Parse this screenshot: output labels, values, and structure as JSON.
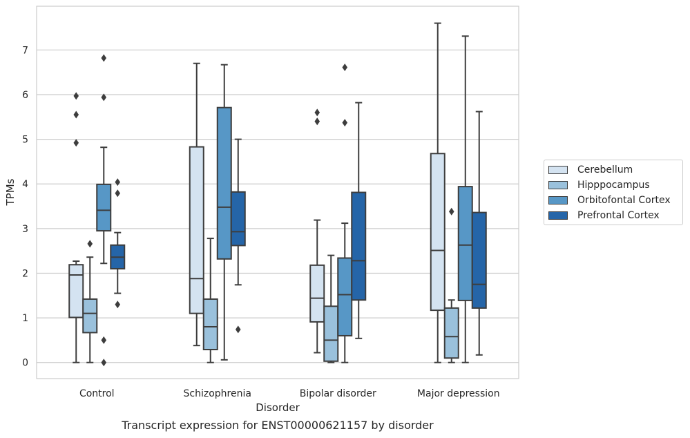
{
  "caption": "Transcript expression for ENST00000621157 by disorder",
  "chart_data": {
    "type": "box",
    "xlabel": "Disorder",
    "ylabel": "TPMs",
    "ylim": [
      -0.36,
      7.98
    ],
    "yticks": [
      0,
      1,
      2,
      3,
      4,
      5,
      6,
      7
    ],
    "grid": true,
    "legend_position": "right",
    "categories": [
      "Control",
      "Schizophrenia",
      "Bipolar disorder",
      "Major depression"
    ],
    "series": [
      {
        "name": "Cerebellum",
        "color": "#d4e3f1",
        "boxes": [
          {
            "whisker_low": 0.0,
            "q1": 1.01,
            "median": 1.96,
            "q3": 2.19,
            "whisker_high": 2.27,
            "outliers": [
              4.92,
              5.55,
              5.97
            ]
          },
          {
            "whisker_low": 0.38,
            "q1": 1.1,
            "median": 1.88,
            "q3": 4.83,
            "whisker_high": 6.7,
            "outliers": []
          },
          {
            "whisker_low": 0.22,
            "q1": 0.91,
            "median": 1.44,
            "q3": 2.18,
            "whisker_high": 3.19,
            "outliers": [
              5.4,
              5.6
            ]
          },
          {
            "whisker_low": 0.0,
            "q1": 1.17,
            "median": 2.51,
            "q3": 4.68,
            "whisker_high": 7.6,
            "outliers": []
          }
        ]
      },
      {
        "name": "Hipppocampus",
        "color": "#9ac1dc",
        "boxes": [
          {
            "whisker_low": 0.0,
            "q1": 0.67,
            "median": 1.1,
            "q3": 1.42,
            "whisker_high": 2.36,
            "outliers": [
              2.66
            ]
          },
          {
            "whisker_low": 0.0,
            "q1": 0.29,
            "median": 0.8,
            "q3": 1.42,
            "whisker_high": 2.78,
            "outliers": []
          },
          {
            "whisker_low": 0.0,
            "q1": 0.03,
            "median": 0.5,
            "q3": 1.26,
            "whisker_high": 2.4,
            "outliers": []
          },
          {
            "whisker_low": 0.0,
            "q1": 0.1,
            "median": 0.58,
            "q3": 1.22,
            "whisker_high": 1.4,
            "outliers": [
              3.38
            ]
          }
        ]
      },
      {
        "name": "Orbitofontal Cortex",
        "color": "#5797c6",
        "boxes": [
          {
            "whisker_low": 2.22,
            "q1": 2.95,
            "median": 3.41,
            "q3": 3.99,
            "whisker_high": 4.82,
            "outliers": [
              0.0,
              0.5,
              5.94,
              6.82
            ]
          },
          {
            "whisker_low": 0.06,
            "q1": 2.32,
            "median": 3.48,
            "q3": 5.71,
            "whisker_high": 6.67,
            "outliers": []
          },
          {
            "whisker_low": 0.0,
            "q1": 0.6,
            "median": 1.52,
            "q3": 2.34,
            "whisker_high": 3.12,
            "outliers": [
              5.37,
              6.61
            ]
          },
          {
            "whisker_low": 0.0,
            "q1": 1.39,
            "median": 2.63,
            "q3": 3.94,
            "whisker_high": 7.31,
            "outliers": []
          }
        ]
      },
      {
        "name": "Prefrontal Cortex",
        "color": "#2565a8",
        "boxes": [
          {
            "whisker_low": 1.55,
            "q1": 2.1,
            "median": 2.36,
            "q3": 2.63,
            "whisker_high": 2.91,
            "outliers": [
              1.3,
              3.79,
              4.04
            ]
          },
          {
            "whisker_low": 1.74,
            "q1": 2.62,
            "median": 2.93,
            "q3": 3.82,
            "whisker_high": 5.0,
            "outliers": [
              0.74
            ]
          },
          {
            "whisker_low": 0.54,
            "q1": 1.4,
            "median": 2.28,
            "q3": 3.81,
            "whisker_high": 5.82,
            "outliers": []
          },
          {
            "whisker_low": 0.17,
            "q1": 1.22,
            "median": 1.75,
            "q3": 3.36,
            "whisker_high": 5.62,
            "outliers": []
          }
        ]
      }
    ]
  }
}
